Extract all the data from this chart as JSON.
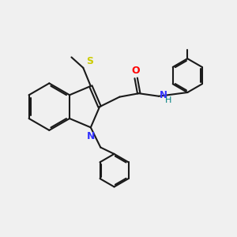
{
  "bg_color": "#f0f0f0",
  "bond_color": "#1a1a1a",
  "N_color": "#3333ff",
  "O_color": "#ff0000",
  "S_color": "#cccc00",
  "NH_color": "#008080",
  "figsize": [
    3.0,
    3.0
  ],
  "dpi": 100,
  "lw": 1.5,
  "xlim": [
    0,
    10
  ],
  "ylim": [
    0,
    10
  ]
}
